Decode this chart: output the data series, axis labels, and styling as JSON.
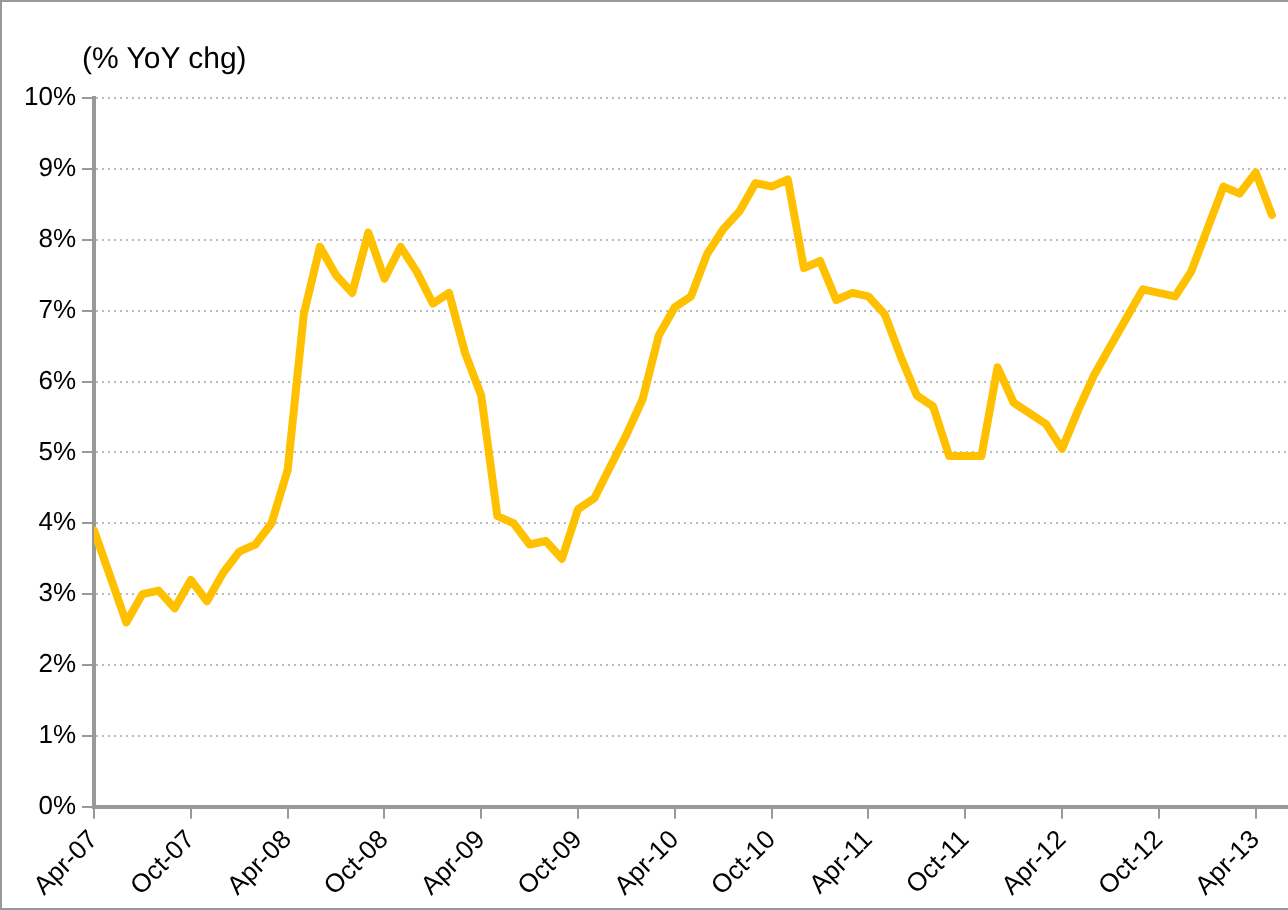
{
  "chart_data": {
    "type": "line",
    "ylabel": "(% YoY chg)",
    "x": [
      "2007-04",
      "2007-05",
      "2007-06",
      "2007-07",
      "2007-08",
      "2007-09",
      "2007-10",
      "2007-11",
      "2007-12",
      "2008-01",
      "2008-02",
      "2008-03",
      "2008-04",
      "2008-05",
      "2008-06",
      "2008-07",
      "2008-08",
      "2008-09",
      "2008-10",
      "2008-11",
      "2008-12",
      "2009-01",
      "2009-02",
      "2009-03",
      "2009-04",
      "2009-05",
      "2009-06",
      "2009-07",
      "2009-08",
      "2009-09",
      "2009-10",
      "2009-11",
      "2009-12",
      "2010-01",
      "2010-02",
      "2010-03",
      "2010-04",
      "2010-05",
      "2010-06",
      "2010-07",
      "2010-08",
      "2010-09",
      "2010-10",
      "2010-11",
      "2010-12",
      "2011-01",
      "2011-02",
      "2011-03",
      "2011-04",
      "2011-05",
      "2011-06",
      "2011-07",
      "2011-08",
      "2011-09",
      "2011-10",
      "2011-11",
      "2011-12",
      "2012-01",
      "2012-02",
      "2012-03",
      "2012-04",
      "2012-05",
      "2012-06",
      "2012-07",
      "2012-08",
      "2012-09",
      "2012-10",
      "2012-11",
      "2012-12",
      "2013-01",
      "2013-02",
      "2013-03",
      "2013-04",
      "2013-05"
    ],
    "series": [
      {
        "color": "#ffc000",
        "values": [
          3.9,
          3.25,
          2.6,
          3.0,
          3.05,
          2.8,
          3.2,
          2.9,
          3.3,
          3.6,
          3.7,
          4.0,
          4.75,
          6.95,
          7.9,
          7.5,
          7.25,
          8.1,
          7.45,
          7.9,
          7.55,
          7.1,
          7.25,
          6.4,
          5.8,
          4.1,
          4.0,
          3.7,
          3.75,
          3.5,
          4.2,
          4.35,
          4.8,
          5.25,
          5.75,
          6.65,
          7.05,
          7.2,
          7.8,
          8.15,
          8.4,
          8.8,
          8.75,
          8.85,
          7.6,
          7.7,
          7.15,
          7.25,
          7.2,
          6.95,
          6.35,
          5.8,
          5.65,
          4.95,
          4.95,
          4.95,
          6.2,
          5.7,
          5.55,
          5.4,
          5.05,
          5.6,
          6.1,
          6.5,
          6.9,
          7.3,
          7.25,
          7.2,
          7.55,
          8.15,
          8.75,
          8.65,
          8.95,
          8.35
        ]
      }
    ],
    "xlim": [
      "2007-04",
      "2013-06"
    ],
    "xticks": [
      {
        "value": "2007-04",
        "label": "Apr-07"
      },
      {
        "value": "2007-10",
        "label": "Oct-07"
      },
      {
        "value": "2008-04",
        "label": "Apr-08"
      },
      {
        "value": "2008-10",
        "label": "Oct-08"
      },
      {
        "value": "2009-04",
        "label": "Apr-09"
      },
      {
        "value": "2009-10",
        "label": "Oct-09"
      },
      {
        "value": "2010-04",
        "label": "Apr-10"
      },
      {
        "value": "2010-10",
        "label": "Oct-10"
      },
      {
        "value": "2011-04",
        "label": "Apr-11"
      },
      {
        "value": "2011-10",
        "label": "Oct-11"
      },
      {
        "value": "2012-04",
        "label": "Apr-12"
      },
      {
        "value": "2012-10",
        "label": "Oct-12"
      },
      {
        "value": "2013-04",
        "label": "Apr-13"
      }
    ],
    "ylim": [
      0,
      10
    ],
    "yticks": [
      {
        "value": 0,
        "label": "0%"
      },
      {
        "value": 1,
        "label": "1%"
      },
      {
        "value": 2,
        "label": "2%"
      },
      {
        "value": 3,
        "label": "3%"
      },
      {
        "value": 4,
        "label": "4%"
      },
      {
        "value": 5,
        "label": "5%"
      },
      {
        "value": 6,
        "label": "6%"
      },
      {
        "value": 7,
        "label": "7%"
      },
      {
        "value": 8,
        "label": "8%"
      },
      {
        "value": 9,
        "label": "9%"
      },
      {
        "value": 10,
        "label": "10%"
      }
    ],
    "grid": "y",
    "legend": false,
    "marker": "none",
    "line_style": "solid"
  }
}
